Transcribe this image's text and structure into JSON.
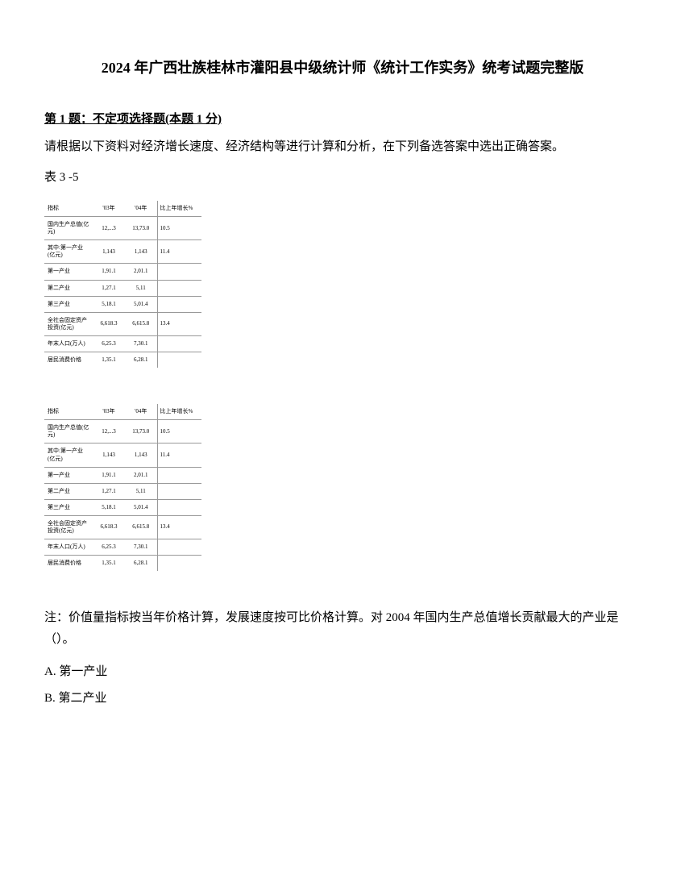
{
  "title": "2024 年广西壮族桂林市灌阳县中级统计师《统计工作实务》统考试题完整版",
  "question": {
    "header_prefix": "第 1 题：",
    "header_type": "不定项选择题(本题 1 分)",
    "text": "请根据以下资料对经济增长速度、经济结构等进行计算和分析，在下列备选答案中选出正确答案。",
    "table_label": "表 3 -5"
  },
  "table": {
    "headers": {
      "col1": "指标",
      "col2": "'03年",
      "col3": "'04年",
      "col4": "比上年增长%"
    },
    "rows": [
      {
        "c1": "国内生产总值(亿元)",
        "c2": "12,...3",
        "c3": "13,73.0",
        "c4": "10.5"
      },
      {
        "c1": "其中:第一产业(亿元)",
        "c2": "1,143",
        "c3": "1,143",
        "c4": "11.4"
      },
      {
        "c1": "第一产业",
        "c2": "1,91.1",
        "c3": "2,01.1",
        "c4": ""
      },
      {
        "c1": "第二产业",
        "c2": "1,27.1",
        "c3": "5,11",
        "c4": ""
      },
      {
        "c1": "第三产业",
        "c2": "5,18.1",
        "c3": "5,01.4",
        "c4": ""
      },
      {
        "c1": "全社会固定资产投资(亿元)",
        "c2": "6,618.3",
        "c3": "6,615.8",
        "c4": "13.4"
      },
      {
        "c1": "年末人口(万人)",
        "c2": "6,25.3",
        "c3": "7,30.1",
        "c4": ""
      },
      {
        "c1": "居民消费价格",
        "c2": "1,35.1",
        "c3": "6,28.1",
        "c4": ""
      }
    ]
  },
  "note": "注：价值量指标按当年价格计算，发展速度按可比价格计算。对 2004 年国内生产总值增长贡献最大的产业是（）。",
  "options": {
    "a": "A. 第一产业",
    "b": "B. 第二产业"
  }
}
